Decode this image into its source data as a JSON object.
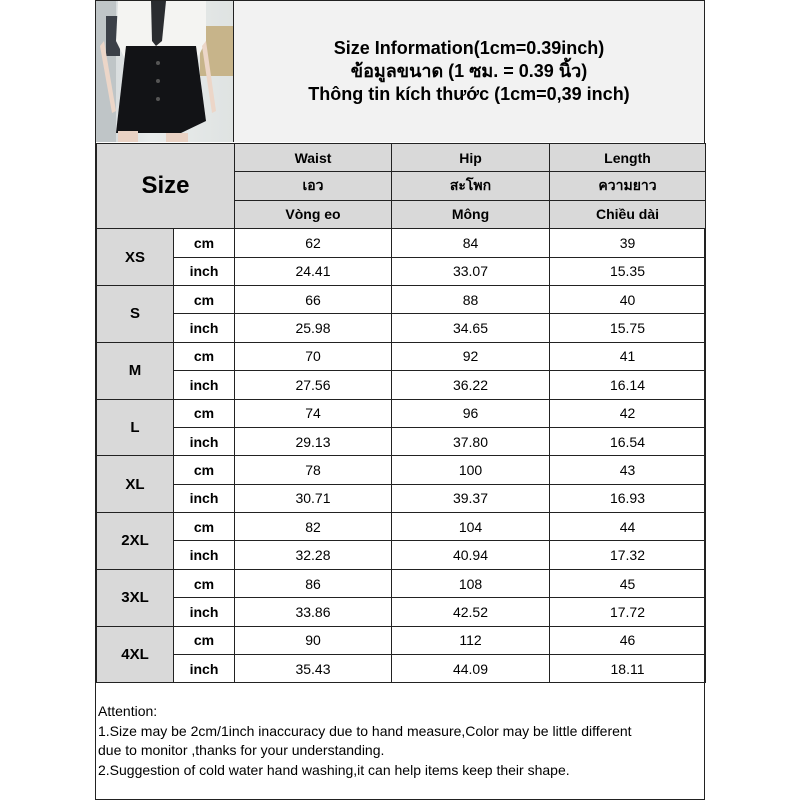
{
  "title_lines": [
    "Size Information(1cm=0.39inch)",
    "ข้อมูลขนาด (1 ซม. = 0.39 นิ้ว)",
    "Thông tin kích thước (1cm=0,39 inch)"
  ],
  "size_header": "Size",
  "columns": [
    {
      "en": "Waist",
      "th": "เอว",
      "vi": "Vòng eo"
    },
    {
      "en": "Hip",
      "th": "สะโพก",
      "vi": "Mông"
    },
    {
      "en": "Length",
      "th": "ความยาว",
      "vi": "Chiều dài"
    }
  ],
  "units": [
    "cm",
    "inch"
  ],
  "rows": [
    {
      "size": "XS",
      "cm": [
        "62",
        "84",
        "39"
      ],
      "inch": [
        "24.41",
        "33.07",
        "15.35"
      ]
    },
    {
      "size": "S",
      "cm": [
        "66",
        "88",
        "40"
      ],
      "inch": [
        "25.98",
        "34.65",
        "15.75"
      ]
    },
    {
      "size": "M",
      "cm": [
        "70",
        "92",
        "41"
      ],
      "inch": [
        "27.56",
        "36.22",
        "16.14"
      ]
    },
    {
      "size": "L",
      "cm": [
        "74",
        "96",
        "42"
      ],
      "inch": [
        "29.13",
        "37.80",
        "16.54"
      ]
    },
    {
      "size": "XL",
      "cm": [
        "78",
        "100",
        "43"
      ],
      "inch": [
        "30.71",
        "39.37",
        "16.93"
      ]
    },
    {
      "size": "2XL",
      "cm": [
        "82",
        "104",
        "44"
      ],
      "inch": [
        "32.28",
        "40.94",
        "17.32"
      ]
    },
    {
      "size": "3XL",
      "cm": [
        "86",
        "108",
        "45"
      ],
      "inch": [
        "33.86",
        "42.52",
        "17.72"
      ]
    },
    {
      "size": "4XL",
      "cm": [
        "90",
        "112",
        "46"
      ],
      "inch": [
        "35.43",
        "44.09",
        "18.11"
      ]
    }
  ],
  "attention": {
    "heading": "Attention:",
    "lines": [
      "1.Size may be 2cm/1inch inaccuracy due to hand measure,Color may be little different",
      "due to monitor ,thanks for your understanding.",
      "2.Suggestion of cold water hand washing,it can help items keep their shape."
    ]
  }
}
